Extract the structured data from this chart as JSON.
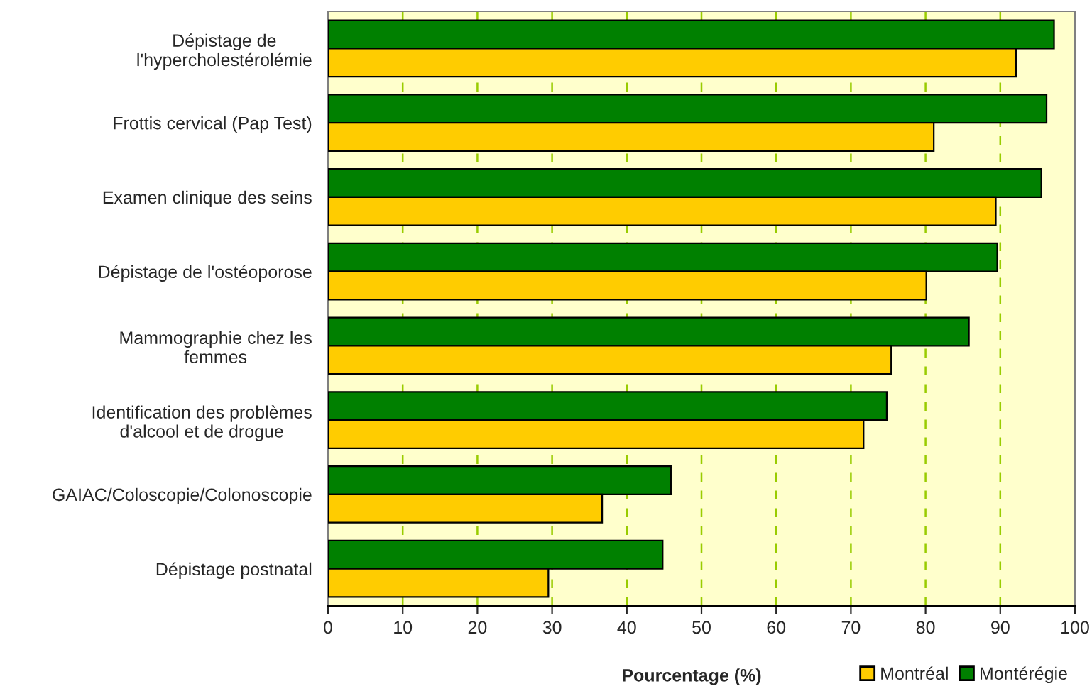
{
  "chart_data": {
    "type": "bar",
    "orientation": "horizontal",
    "categories": [
      "Dépistage de\nl'hypercholestérolémie",
      "Frottis cervical (Pap Test)",
      "Examen clinique des seins",
      "Dépistage de l'ostéoporose",
      "Mammographie chez les\nfemmes",
      "Identification des problèmes\nd'alcool et de drogue",
      "GAIAC/Coloscopie/Colonoscopie",
      "Dépistage postnatal"
    ],
    "series": [
      {
        "name": "Montérégie",
        "color": "#008000",
        "values": [
          97.2,
          96.2,
          95.5,
          89.6,
          85.8,
          74.8,
          45.9,
          44.8
        ]
      },
      {
        "name": "Montréal",
        "color": "#ffcc00",
        "values": [
          92.1,
          81.1,
          89.4,
          80.1,
          75.4,
          71.7,
          36.7,
          29.5
        ]
      }
    ],
    "xlabel": "Pourcentage (%)",
    "xlim": [
      0,
      100
    ],
    "xticks": [
      0,
      10,
      20,
      30,
      40,
      50,
      60,
      70,
      80,
      90,
      100
    ],
    "grid": "x",
    "legend": "bottom right"
  }
}
